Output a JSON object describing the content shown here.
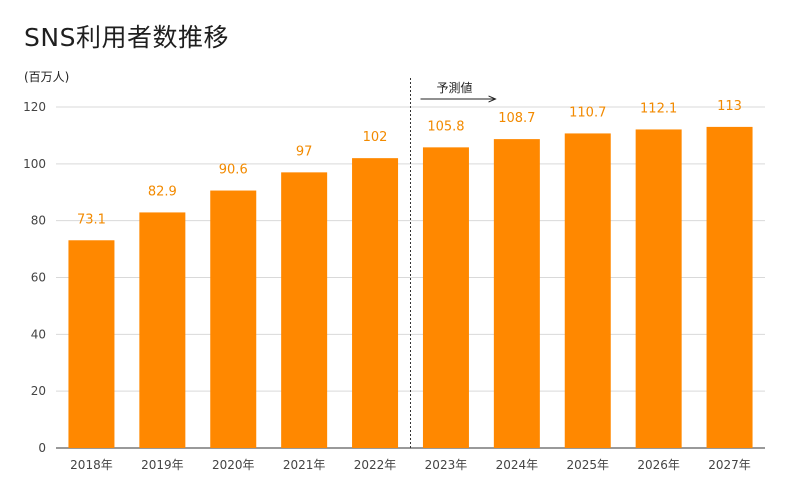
{
  "chart_data": {
    "type": "bar",
    "title": "SNS利用者数推移",
    "ylabel": "(百万人)",
    "xlabel": "",
    "categories": [
      "2018年",
      "2019年",
      "2020年",
      "2021年",
      "2022年",
      "2023年",
      "2024年",
      "2025年",
      "2026年",
      "2027年"
    ],
    "values": [
      73.1,
      82.9,
      90.6,
      97,
      102,
      105.8,
      108.7,
      110.7,
      112.1,
      113
    ],
    "data_labels": [
      "73.1",
      "82.9",
      "90.6",
      "97",
      "102",
      "105.8",
      "108.7",
      "110.7",
      "112.1",
      "113"
    ],
    "ylim": [
      0,
      120
    ],
    "yticks": [
      0,
      20,
      40,
      60,
      80,
      100,
      120
    ],
    "grid": true,
    "legend": "none",
    "bar_color": "#ff8800",
    "label_color": "#f28a00",
    "annotation": {
      "text": "予測値",
      "divider_before_category": "2023年"
    }
  }
}
